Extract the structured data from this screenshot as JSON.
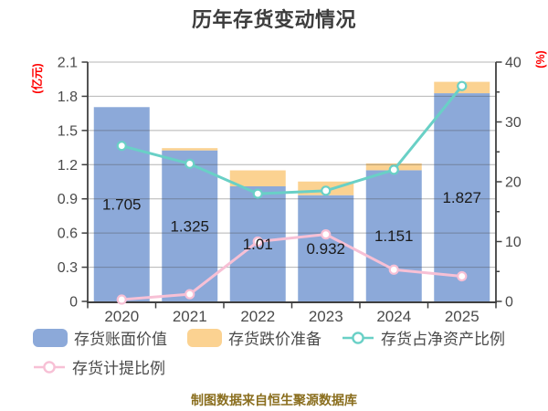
{
  "title": "历年存货变动情况",
  "caption": "制图数据来自恒生聚源数据库",
  "colors": {
    "bar_book_value": "#8ca9d9",
    "bar_provision": "#fbd291",
    "line_net_asset_ratio": "#69d0c6",
    "line_provision_ratio": "#f7c0d5",
    "marker_fill": "#ffffff",
    "grid": "#4d4d4d",
    "spine": "#404040",
    "tick_text": "#4a4a4a",
    "bar_label": "#1a1a1a",
    "axis_unit": "#ff0000",
    "title_text": "#3d3d3d",
    "caption_text": "#8a6e1e"
  },
  "legend": {
    "items": [
      {
        "label": "存货账面价值",
        "marker": "bar-swatch-blue"
      },
      {
        "label": "存货跌价准备",
        "marker": "bar-swatch-orange"
      },
      {
        "label": "存货占净资产比例",
        "marker": "line-marker-teal"
      },
      {
        "label": "存货计提比例",
        "marker": "line-marker-pink"
      }
    ]
  },
  "chart_data": {
    "type": "bar",
    "subtype": "stacked-bars-with-lines",
    "title": "历年存货变动情况",
    "categories": [
      "2020",
      "2021",
      "2022",
      "2023",
      "2024",
      "2025"
    ],
    "series": [
      {
        "name": "存货账面价值",
        "type": "bar",
        "axis": "left",
        "values": [
          1.705,
          1.325,
          1.01,
          0.932,
          1.151,
          1.827
        ],
        "data_labels": [
          "1.705",
          "1.325",
          "1.01",
          "0.932",
          "1.151",
          "1.827"
        ]
      },
      {
        "name": "存货跌价准备",
        "type": "bar",
        "axis": "left",
        "stacked": true,
        "values": [
          0,
          0.02,
          0.14,
          0.12,
          0.06,
          0.1
        ]
      },
      {
        "name": "存货占净资产比例",
        "type": "line",
        "axis": "right",
        "values": [
          26,
          23,
          18,
          18.5,
          22,
          36
        ]
      },
      {
        "name": "存货计提比例",
        "type": "line",
        "axis": "right",
        "values": [
          0.3,
          1.2,
          10,
          11.2,
          5.3,
          4.2
        ]
      }
    ],
    "left_axis": {
      "label": "(亿元)",
      "min": 0,
      "max": 2.1,
      "step": 0.3,
      "ticks": [
        "0",
        "0.3",
        "0.6",
        "0.9",
        "1.2",
        "1.5",
        "1.8",
        "2.1"
      ]
    },
    "right_axis": {
      "label": "(%)",
      "min": 0,
      "max": 40,
      "step": 10,
      "minor_step": 5,
      "ticks": [
        "0",
        "10",
        "20",
        "30",
        "40"
      ]
    },
    "grid": true,
    "legend_position": "bottom"
  }
}
